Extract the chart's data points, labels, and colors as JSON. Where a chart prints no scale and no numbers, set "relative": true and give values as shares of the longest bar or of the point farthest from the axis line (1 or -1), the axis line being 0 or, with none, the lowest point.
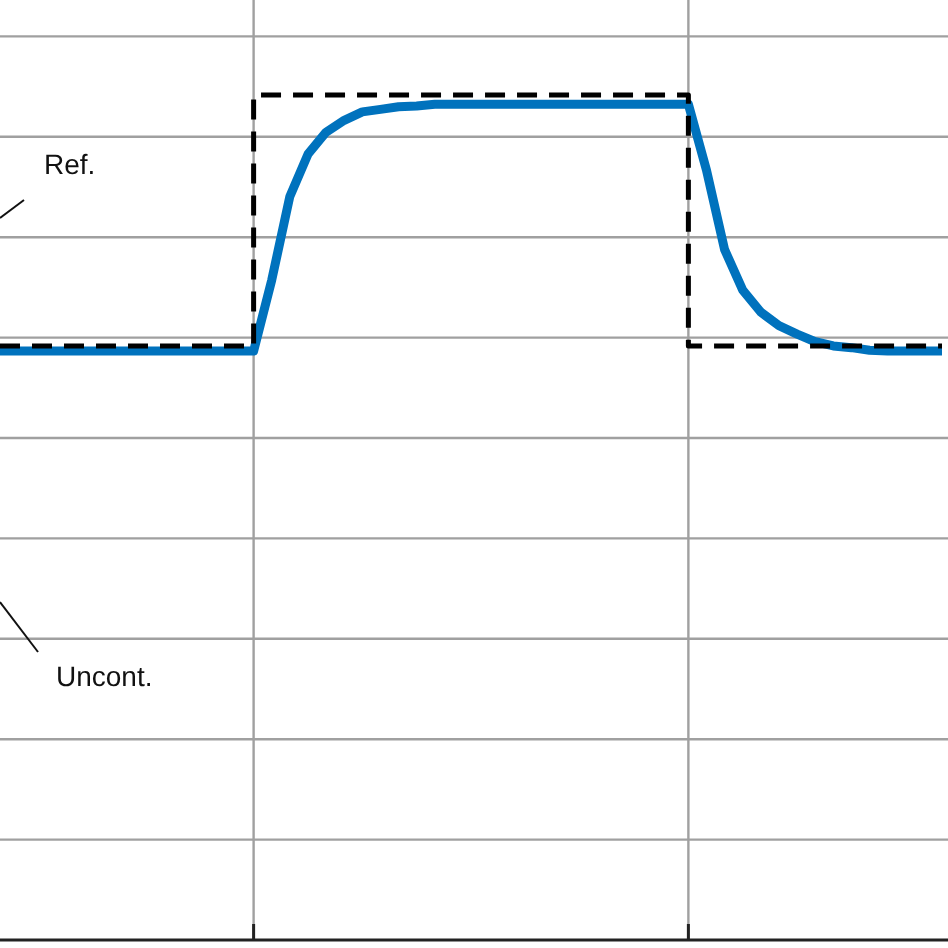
{
  "chart_data": {
    "type": "line",
    "relative": true,
    "grid": true,
    "legend": false,
    "tick_labels": false,
    "categories": [
      null,
      null,
      null,
      null,
      null,
      null,
      null,
      null,
      null,
      null,
      null,
      null,
      null,
      null,
      null,
      null,
      null,
      null,
      null,
      null,
      null,
      null,
      null,
      null,
      null,
      null,
      null,
      null,
      null,
      null,
      null,
      null,
      null,
      null,
      null,
      null,
      null,
      null,
      null,
      null,
      null,
      null,
      null,
      null,
      null,
      null,
      null,
      null,
      null,
      null,
      null,
      null,
      null
    ],
    "series": [
      {
        "type": "step",
        "color": "#000000",
        "line_style": "dashed",
        "values": [
          0.703,
          0.703,
          0.703,
          0.703,
          0.703,
          0.703,
          0.703,
          0.703,
          0.703,
          0.703,
          0.703,
          0.703,
          0.703,
          0.703,
          1,
          1,
          1,
          1,
          1,
          1,
          1,
          1,
          1,
          1,
          1,
          1,
          1,
          1,
          1,
          1,
          1,
          1,
          1,
          1,
          1,
          1,
          1,
          1,
          0.703,
          0.703,
          0.703,
          0.703,
          0.703,
          0.703,
          0.703,
          0.703,
          0.703,
          0.703,
          0.703,
          0.703,
          0.703,
          0.703,
          0.703
        ]
      },
      {
        "type": "line",
        "color": "#0072bd",
        "line_style": "solid",
        "values": [
          0.697,
          0.697,
          0.697,
          0.697,
          0.697,
          0.697,
          0.697,
          0.697,
          0.697,
          0.697,
          0.697,
          0.697,
          0.697,
          0.697,
          0.697,
          0.781,
          0.88,
          0.93,
          0.956,
          0.97,
          0.98,
          0.983,
          0.986,
          0.987,
          0.989,
          0.989,
          0.989,
          0.989,
          0.989,
          0.989,
          0.989,
          0.989,
          0.989,
          0.989,
          0.989,
          0.989,
          0.989,
          0.989,
          0.989,
          0.911,
          0.817,
          0.769,
          0.743,
          0.727,
          0.717,
          0.708,
          0.703,
          0.701,
          0.698,
          0.697,
          0.697,
          0.697,
          0.697
        ]
      }
    ],
    "annotations": [
      "Ref.",
      "Uncont."
    ]
  }
}
